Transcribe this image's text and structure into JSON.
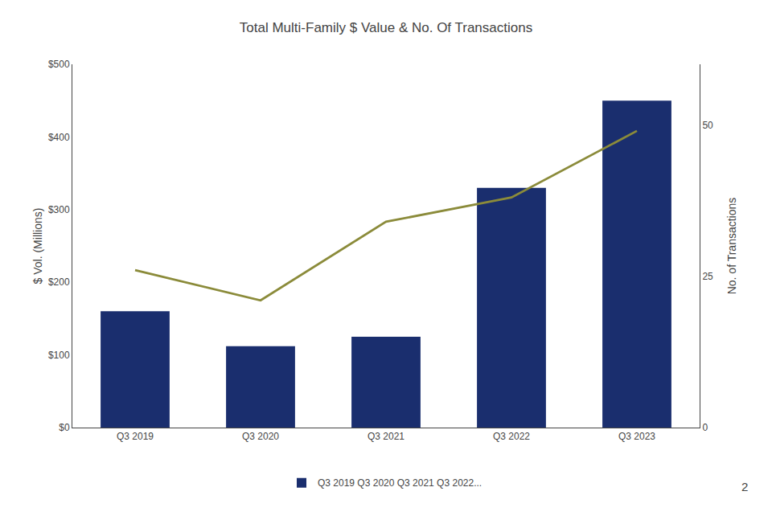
{
  "chart_data": {
    "type": "bar",
    "title": "Total Multi-Family $ Value & No. Of Transactions",
    "categories": [
      "Q3 2019",
      "Q3 2020",
      "Q3 2021",
      "Q3 2022",
      "Q3 2023"
    ],
    "series": [
      {
        "name": "Q3 2019 Q3 2020 Q3 2021 Q3 2022...",
        "type": "bar",
        "color": "#1a2e6e",
        "values": [
          160,
          112,
          125,
          330,
          450
        ]
      },
      {
        "type": "line",
        "color": "#8b8b3a",
        "axis": "y2",
        "values": [
          26,
          21,
          34,
          38,
          49
        ]
      }
    ],
    "ylabel": "$ Vol. (Millions)",
    "y2label": "No. of Transactions",
    "ylim": [
      0,
      500
    ],
    "yticks": [
      {
        "value": 0,
        "label": "$0"
      },
      {
        "value": 100,
        "label": "$100"
      },
      {
        "value": 200,
        "label": "$200"
      },
      {
        "value": 300,
        "label": "$300"
      },
      {
        "value": 400,
        "label": "$400"
      },
      {
        "value": 500,
        "label": "$500"
      }
    ],
    "y2lim": [
      0,
      60
    ],
    "y2ticks": [
      0,
      25,
      50
    ],
    "grid": false,
    "legend": "bottom",
    "annotations": [
      "2"
    ]
  }
}
